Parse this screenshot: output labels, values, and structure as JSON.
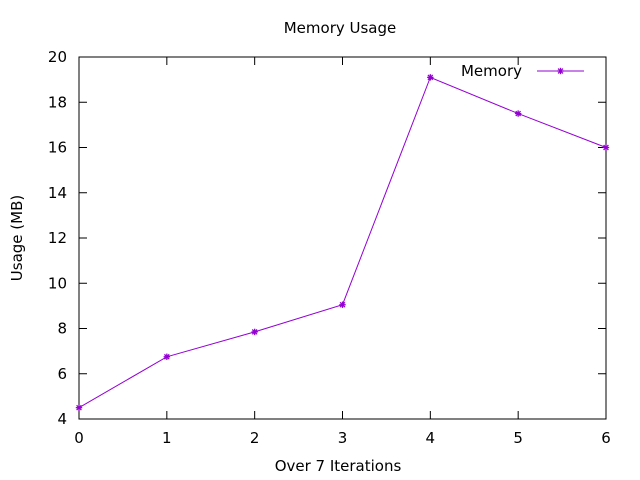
{
  "chart_data": {
    "type": "line",
    "title": "Memory Usage",
    "xlabel": "Over 7 Iterations",
    "ylabel": "Usage (MB)",
    "xlim": [
      0,
      6
    ],
    "ylim": [
      4,
      20
    ],
    "xticks": [
      0,
      1,
      2,
      3,
      4,
      5,
      6
    ],
    "yticks": [
      4,
      6,
      8,
      10,
      12,
      14,
      16,
      18,
      20
    ],
    "grid": false,
    "legend_position": "top-right",
    "series": [
      {
        "name": "Memory",
        "color": "#9400d3",
        "marker": "asterisk",
        "x": [
          0,
          1,
          2,
          3,
          4,
          5,
          6
        ],
        "y": [
          4.5,
          6.75,
          7.85,
          9.05,
          19.1,
          17.5,
          16.0
        ]
      }
    ]
  }
}
